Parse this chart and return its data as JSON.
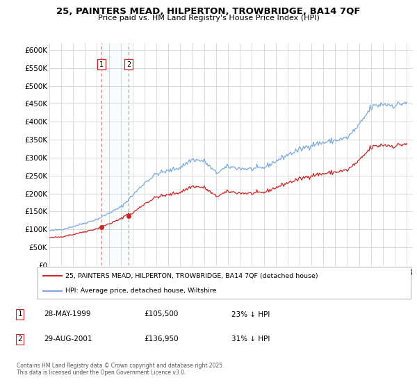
{
  "title": "25, PAINTERS MEAD, HILPERTON, TROWBRIDGE, BA14 7QF",
  "subtitle": "Price paid vs. HM Land Registry's House Price Index (HPI)",
  "ylim": [
    0,
    620000
  ],
  "yticks": [
    0,
    50000,
    100000,
    150000,
    200000,
    250000,
    300000,
    350000,
    400000,
    450000,
    500000,
    550000,
    600000
  ],
  "ytick_labels": [
    "£0",
    "£50K",
    "£100K",
    "£150K",
    "£200K",
    "£250K",
    "£300K",
    "£350K",
    "£400K",
    "£450K",
    "£500K",
    "£550K",
    "£600K"
  ],
  "hpi_color": "#7aaadd",
  "price_color": "#cc2222",
  "marker_color": "#cc2222",
  "transaction1": {
    "date_num": 1999.374,
    "price": 105500,
    "label": "1"
  },
  "transaction2": {
    "date_num": 2001.66,
    "price": 136950,
    "label": "2"
  },
  "legend_line1": "25, PAINTERS MEAD, HILPERTON, TROWBRIDGE, BA14 7QF (detached house)",
  "legend_line2": "HPI: Average price, detached house, Wiltshire",
  "table_rows": [
    {
      "num": "1",
      "date": "28-MAY-1999",
      "price": "£105,500",
      "pct": "23% ↓ HPI"
    },
    {
      "num": "2",
      "date": "29-AUG-2001",
      "price": "£136,950",
      "pct": "31% ↓ HPI"
    }
  ],
  "footnote": "Contains HM Land Registry data © Crown copyright and database right 2025.\nThis data is licensed under the Open Government Licence v3.0.",
  "background_color": "#ffffff",
  "grid_color": "#cccccc",
  "xlim_start": 1995.0,
  "xlim_end": 2025.5,
  "xtick_start": 1995,
  "xtick_end": 2025
}
